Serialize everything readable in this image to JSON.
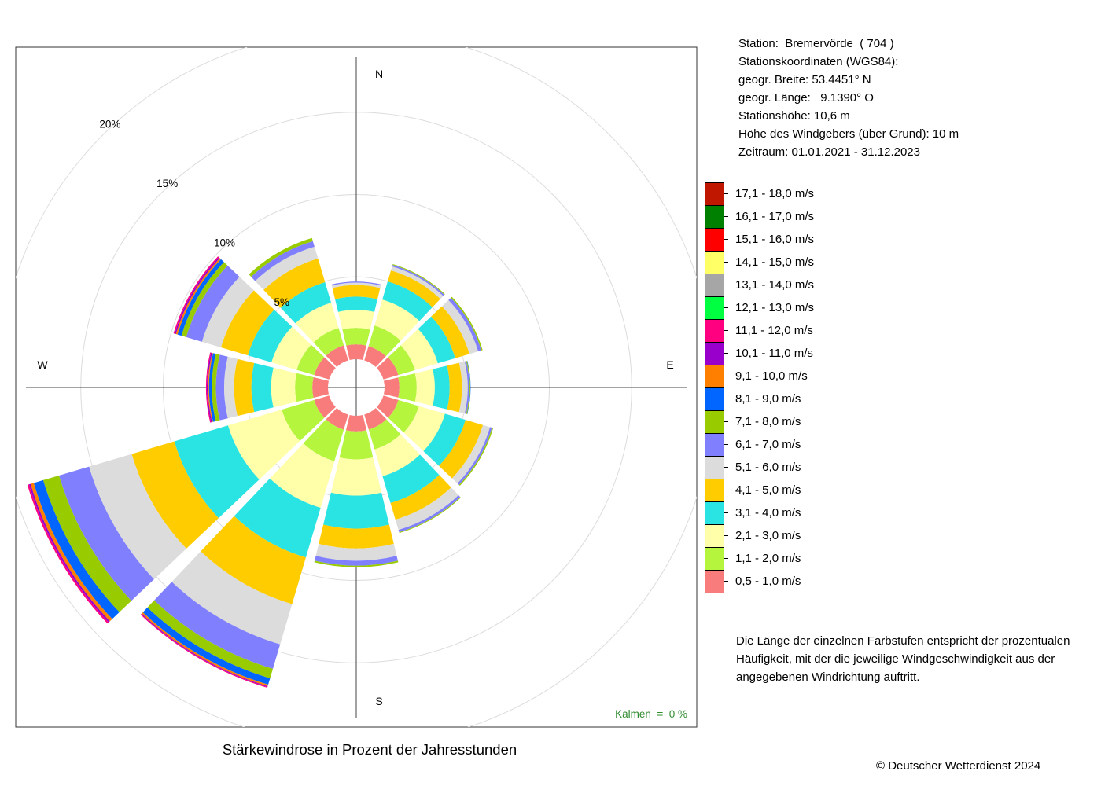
{
  "station": {
    "lines": [
      "Station:  Bremervörde  ( 704 )",
      "Stationskoordinaten (WGS84):",
      "geogr. Breite: 53.4451° N",
      "geogr. Länge:   9.1390° O",
      "Stationshöhe: 10,6 m",
      "Höhe des Windgebers (über Grund): 10 m",
      "Zeitraum: 01.01.2021 - 31.12.2023"
    ]
  },
  "note": "Die Länge der einzelnen Farbstufen entspricht der prozentualen Häufigkeit, mit der die jeweilige Windgeschwindigkeit aus der angegebenen Windrichtung auftritt.",
  "caption": "Stärkewindrose in Prozent der Jahresstunden",
  "copyright": "© Deutscher Wetterdienst  2024",
  "chart_data": {
    "type": "polar-stacked-bar",
    "title": "Stärkewindrose in Prozent der Jahresstunden",
    "calm_label": "Kalmen  =  0 %",
    "compass_labels": [
      "N",
      "E",
      "S",
      "W"
    ],
    "ring_labels": [
      "5%",
      "10%",
      "15%",
      "20%"
    ],
    "rings": [
      5,
      10,
      15,
      20
    ],
    "directions_deg": [
      0,
      30,
      60,
      90,
      120,
      150,
      180,
      210,
      240,
      270,
      300,
      330
    ],
    "legend": [
      {
        "label": "0,5 - 1,0 m/s",
        "color": "#F87C7C"
      },
      {
        "label": "1,1 - 2,0 m/s",
        "color": "#B5F53D"
      },
      {
        "label": "2,1 - 3,0 m/s",
        "color": "#FFFFAA"
      },
      {
        "label": "3,1 - 4,0 m/s",
        "color": "#2AE3E3"
      },
      {
        "label": "4,1 - 5,0 m/s",
        "color": "#FFCC00"
      },
      {
        "label": "5,1 - 6,0 m/s",
        "color": "#DCDCDC"
      },
      {
        "label": "6,1 - 7,0 m/s",
        "color": "#8080FF"
      },
      {
        "label": "7,1 - 8,0 m/s",
        "color": "#99CC00"
      },
      {
        "label": "8,1 - 9,0 m/s",
        "color": "#0066FF"
      },
      {
        "label": "9,1 - 10,0 m/s",
        "color": "#FF8000"
      },
      {
        "label": "10,1 - 11,0 m/s",
        "color": "#9900CC"
      },
      {
        "label": "11,1 - 12,0 m/s",
        "color": "#FF0080"
      },
      {
        "label": "12,1 - 13,0 m/s",
        "color": "#00FF40"
      },
      {
        "label": "13,1 - 14,0 m/s",
        "color": "#A6A6A6"
      },
      {
        "label": "14,1 - 15,0 m/s",
        "color": "#FFFF66"
      },
      {
        "label": "15,1 - 16,0 m/s",
        "color": "#FF0000"
      },
      {
        "label": "16,1 - 17,0 m/s",
        "color": "#008000"
      },
      {
        "label": "17,1 - 18,0 m/s",
        "color": "#C01800"
      }
    ],
    "cumulative_percent": {
      "0": [
        0.9,
        1.9,
        3.0,
        3.8,
        4.5,
        4.65,
        4.72
      ],
      "30": [
        0.9,
        2.2,
        3.85,
        5.0,
        5.7,
        5.95,
        6.05,
        6.1
      ],
      "60": [
        0.95,
        2.0,
        3.45,
        4.55,
        5.45,
        6.0,
        6.2,
        6.28
      ],
      "90": [
        0.9,
        1.95,
        3.05,
        3.95,
        4.7,
        5.05,
        5.15,
        5.2,
        5.22
      ],
      "120": [
        0.95,
        2.25,
        3.9,
        5.2,
        6.3,
        6.75,
        6.88,
        6.95
      ],
      "150": [
        0.95,
        2.2,
        3.9,
        5.6,
        6.65,
        7.3,
        7.45,
        7.5
      ],
      "180": [
        0.95,
        2.65,
        4.85,
        6.85,
        8.05,
        8.8,
        9.1,
        9.2
      ],
      "210": [
        0.95,
        2.95,
        5.9,
        9.05,
        12.0,
        14.55,
        16.1,
        16.7,
        17.1,
        17.2,
        17.25,
        17.3
      ],
      "240": [
        0.95,
        3.0,
        6.4,
        9.8,
        12.5,
        15.2,
        17.1,
        18.1,
        18.7,
        18.9,
        19.0,
        19.1
      ],
      "270": [
        0.95,
        2.0,
        3.45,
        4.65,
        5.7,
        6.3,
        6.8,
        7.05,
        7.22,
        7.28,
        7.35,
        7.4
      ],
      "300": [
        0.95,
        2.05,
        3.65,
        5.15,
        6.85,
        8.05,
        9.05,
        9.35,
        9.6,
        9.7,
        9.78,
        9.85
      ],
      "330": [
        0.95,
        2.05,
        3.65,
        4.95,
        6.45,
        7.2,
        7.55,
        7.75
      ]
    }
  }
}
